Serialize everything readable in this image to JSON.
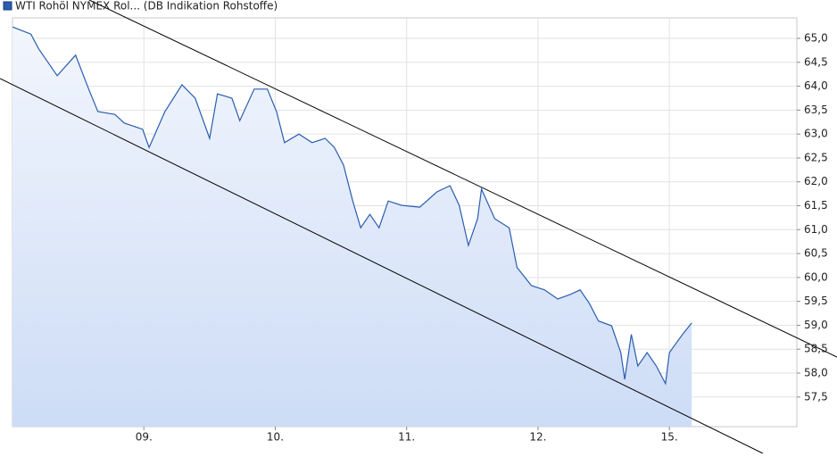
{
  "chart_data": {
    "type": "line",
    "legend": "WTI Rohöl NYMEX Rol... (DB Indikation Rohstoffe)",
    "x": [
      0,
      0.14,
      0.2,
      0.34,
      0.48,
      0.58,
      0.65,
      0.78,
      0.85,
      0.99,
      1.04,
      1.16,
      1.29,
      1.39,
      1.5,
      1.56,
      1.67,
      1.73,
      1.84,
      1.94,
      2.01,
      2.07,
      2.18,
      2.28,
      2.38,
      2.45,
      2.52,
      2.59,
      2.65,
      2.72,
      2.79,
      2.86,
      2.96,
      3.1,
      3.23,
      3.33,
      3.4,
      3.47,
      3.54,
      3.57,
      3.67,
      3.78,
      3.84,
      3.95,
      4.05,
      4.15,
      4.25,
      4.32,
      4.39,
      4.46,
      4.56,
      4.63,
      4.66,
      4.71,
      4.76,
      4.83,
      4.9,
      4.97,
      5.0,
      5.05,
      5.1,
      5.17
    ],
    "values": [
      65.24,
      65.09,
      64.78,
      64.22,
      64.65,
      63.94,
      63.47,
      63.41,
      63.23,
      63.1,
      62.72,
      63.47,
      64.03,
      63.75,
      62.91,
      63.84,
      63.75,
      63.28,
      63.94,
      63.94,
      63.47,
      62.82,
      63.0,
      62.82,
      62.91,
      62.72,
      62.35,
      61.6,
      61.04,
      61.32,
      61.04,
      61.6,
      61.51,
      61.47,
      61.79,
      61.92,
      61.51,
      60.67,
      61.23,
      61.85,
      61.23,
      61.04,
      60.21,
      59.83,
      59.74,
      59.55,
      59.65,
      59.74,
      59.46,
      59.09,
      58.99,
      58.43,
      57.87,
      58.81,
      58.15,
      58.43,
      58.15,
      57.78,
      58.43,
      58.62,
      58.81,
      59.05
    ],
    "color": "#2a5db0",
    "xlim": [
      0,
      5.97
    ],
    "xticks": [
      {
        "value": 1,
        "label": "09."
      },
      {
        "value": 2,
        "label": "10."
      },
      {
        "value": 3,
        "label": "11."
      },
      {
        "value": 4,
        "label": "12."
      },
      {
        "value": 5,
        "label": "15."
      }
    ],
    "ylim": [
      56.88,
      65.43
    ],
    "yticks": [
      {
        "value": 57.5,
        "label": "57,5"
      },
      {
        "value": 58,
        "label": "58,0"
      },
      {
        "value": 58.5,
        "label": "58,5"
      },
      {
        "value": 59,
        "label": "59,0"
      },
      {
        "value": 59.5,
        "label": "59,5"
      },
      {
        "value": 60,
        "label": "60,0"
      },
      {
        "value": 60.5,
        "label": "60,5"
      },
      {
        "value": 61,
        "label": "61,0"
      },
      {
        "value": 61.5,
        "label": "61,5"
      },
      {
        "value": 62,
        "label": "62,0"
      },
      {
        "value": 62.5,
        "label": "62,5"
      },
      {
        "value": 63,
        "label": "63,0"
      },
      {
        "value": 63.5,
        "label": "63,5"
      },
      {
        "value": 64,
        "label": "64,0"
      },
      {
        "value": 64.5,
        "label": "64,5"
      },
      {
        "value": 65,
        "label": "65,0"
      }
    ],
    "grid": true
  }
}
